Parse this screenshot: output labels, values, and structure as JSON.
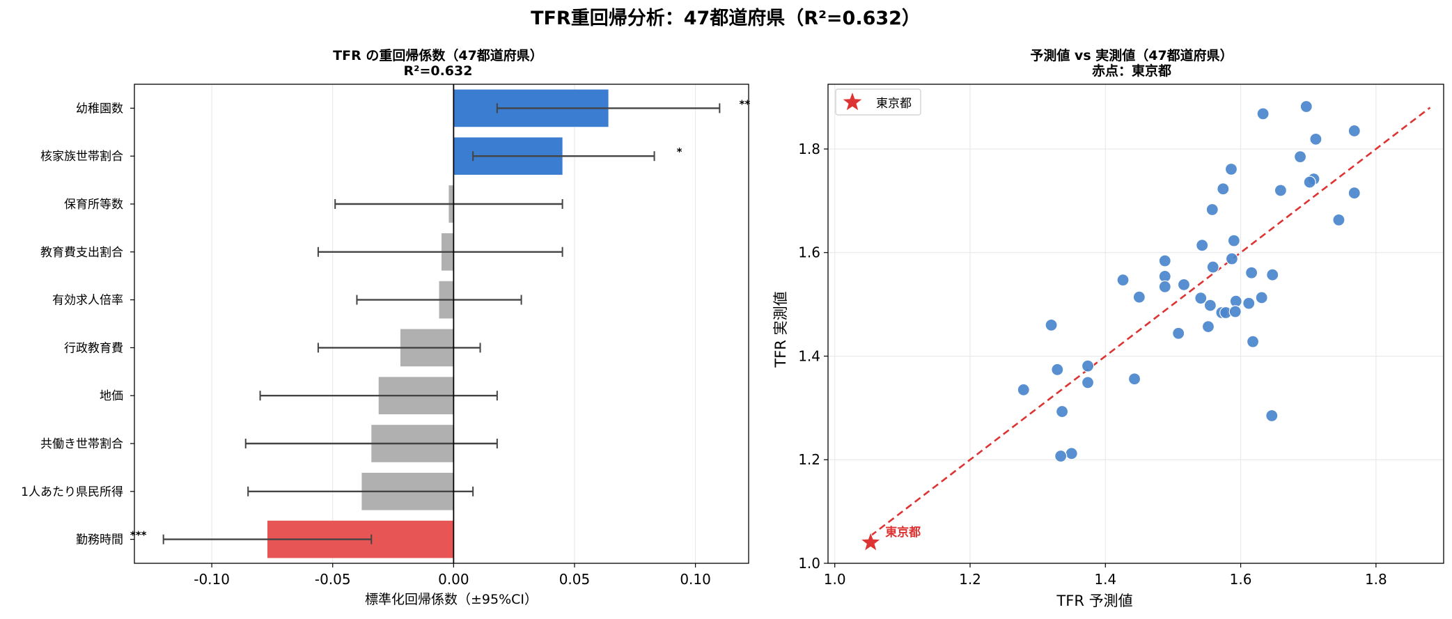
{
  "figure": {
    "suptitle": "TFR重回帰分析：47都道府県（R²=0.632）"
  },
  "chart_data": [
    {
      "type": "bar",
      "orientation": "horizontal",
      "title": "TFR の重回帰係数（47都道府県）",
      "subtitle": "R²=0.632",
      "xlabel": "標準化回帰係数（±95%CI）",
      "ylabel": "",
      "xlim": [
        -0.132,
        0.122
      ],
      "xticks": [
        -0.1,
        -0.05,
        0.0,
        0.05,
        0.1
      ],
      "xtick_labels": [
        "-0.10",
        "-0.05",
        "0.00",
        "0.05",
        "0.10"
      ],
      "grid": "vertical",
      "categories": [
        "幼稚園数",
        "核家族世帯割合",
        "保育所等数",
        "教育費支出割合",
        "有効求人倍率",
        "行政教育費",
        "地価",
        "共働き世帯割合",
        "1人あたり県民所得",
        "勤務時間"
      ],
      "values": [
        0.064,
        0.045,
        -0.002,
        -0.005,
        -0.006,
        -0.022,
        -0.031,
        -0.034,
        -0.038,
        -0.077
      ],
      "ci_low": [
        0.018,
        0.008,
        -0.049,
        -0.056,
        -0.04,
        -0.056,
        -0.08,
        -0.086,
        -0.085,
        -0.12
      ],
      "ci_high": [
        0.11,
        0.083,
        0.045,
        0.045,
        0.028,
        0.011,
        0.018,
        0.018,
        0.008,
        -0.034
      ],
      "significance": [
        "**",
        "*",
        "",
        "",
        "",
        "",
        "",
        "",
        "",
        "***"
      ],
      "colors": [
        "#3a7dd1",
        "#3a7dd1",
        "#b0b0b0",
        "#b0b0b0",
        "#b0b0b0",
        "#b0b0b0",
        "#b0b0b0",
        "#b0b0b0",
        "#b0b0b0",
        "#e85555"
      ]
    },
    {
      "type": "scatter",
      "title": "予測値 vs 実測値（47都道府県）",
      "subtitle": "赤点：東京都",
      "xlabel": "TFR 予測値",
      "ylabel": "TFR 実測値",
      "xlim": [
        0.99,
        1.9
      ],
      "ylim": [
        1.0,
        1.925
      ],
      "xticks": [
        1.0,
        1.2,
        1.4,
        1.6,
        1.8
      ],
      "xtick_labels": [
        "1.0",
        "1.2",
        "1.4",
        "1.6",
        "1.8"
      ],
      "yticks": [
        1.0,
        1.2,
        1.4,
        1.6,
        1.8
      ],
      "ytick_labels": [
        "1.0",
        "1.2",
        "1.4",
        "1.6",
        "1.8"
      ],
      "grid": true,
      "legend_position": "top-left",
      "legend_label": "東京都",
      "highlight": {
        "x": 1.053,
        "y": 1.04,
        "label": "東京都",
        "color": "#dd3333"
      },
      "reference_line": {
        "x": [
          1.053,
          1.88
        ],
        "y": [
          1.053,
          1.88
        ],
        "style": "dashed",
        "color": "#dd3333"
      },
      "point_color": "#4a86cc",
      "points": [
        [
          1.633,
          1.868
        ],
        [
          1.697,
          1.882
        ],
        [
          1.768,
          1.835
        ],
        [
          1.711,
          1.819
        ],
        [
          1.688,
          1.785
        ],
        [
          1.708,
          1.742
        ],
        [
          1.702,
          1.736
        ],
        [
          1.659,
          1.72
        ],
        [
          1.768,
          1.715
        ],
        [
          1.586,
          1.761
        ],
        [
          1.574,
          1.723
        ],
        [
          1.558,
          1.683
        ],
        [
          1.745,
          1.663
        ],
        [
          1.59,
          1.623
        ],
        [
          1.543,
          1.614
        ],
        [
          1.488,
          1.584
        ],
        [
          1.587,
          1.588
        ],
        [
          1.559,
          1.572
        ],
        [
          1.616,
          1.561
        ],
        [
          1.647,
          1.557
        ],
        [
          1.488,
          1.554
        ],
        [
          1.426,
          1.547
        ],
        [
          1.516,
          1.538
        ],
        [
          1.488,
          1.534
        ],
        [
          1.45,
          1.514
        ],
        [
          1.541,
          1.512
        ],
        [
          1.631,
          1.513
        ],
        [
          1.555,
          1.498
        ],
        [
          1.593,
          1.506
        ],
        [
          1.612,
          1.502
        ],
        [
          1.572,
          1.484
        ],
        [
          1.578,
          1.484
        ],
        [
          1.592,
          1.486
        ],
        [
          1.32,
          1.46
        ],
        [
          1.552,
          1.457
        ],
        [
          1.508,
          1.444
        ],
        [
          1.618,
          1.428
        ],
        [
          1.374,
          1.381
        ],
        [
          1.329,
          1.374
        ],
        [
          1.443,
          1.356
        ],
        [
          1.374,
          1.349
        ],
        [
          1.279,
          1.335
        ],
        [
          1.336,
          1.293
        ],
        [
          1.646,
          1.285
        ],
        [
          1.35,
          1.212
        ],
        [
          1.334,
          1.207
        ]
      ]
    }
  ]
}
